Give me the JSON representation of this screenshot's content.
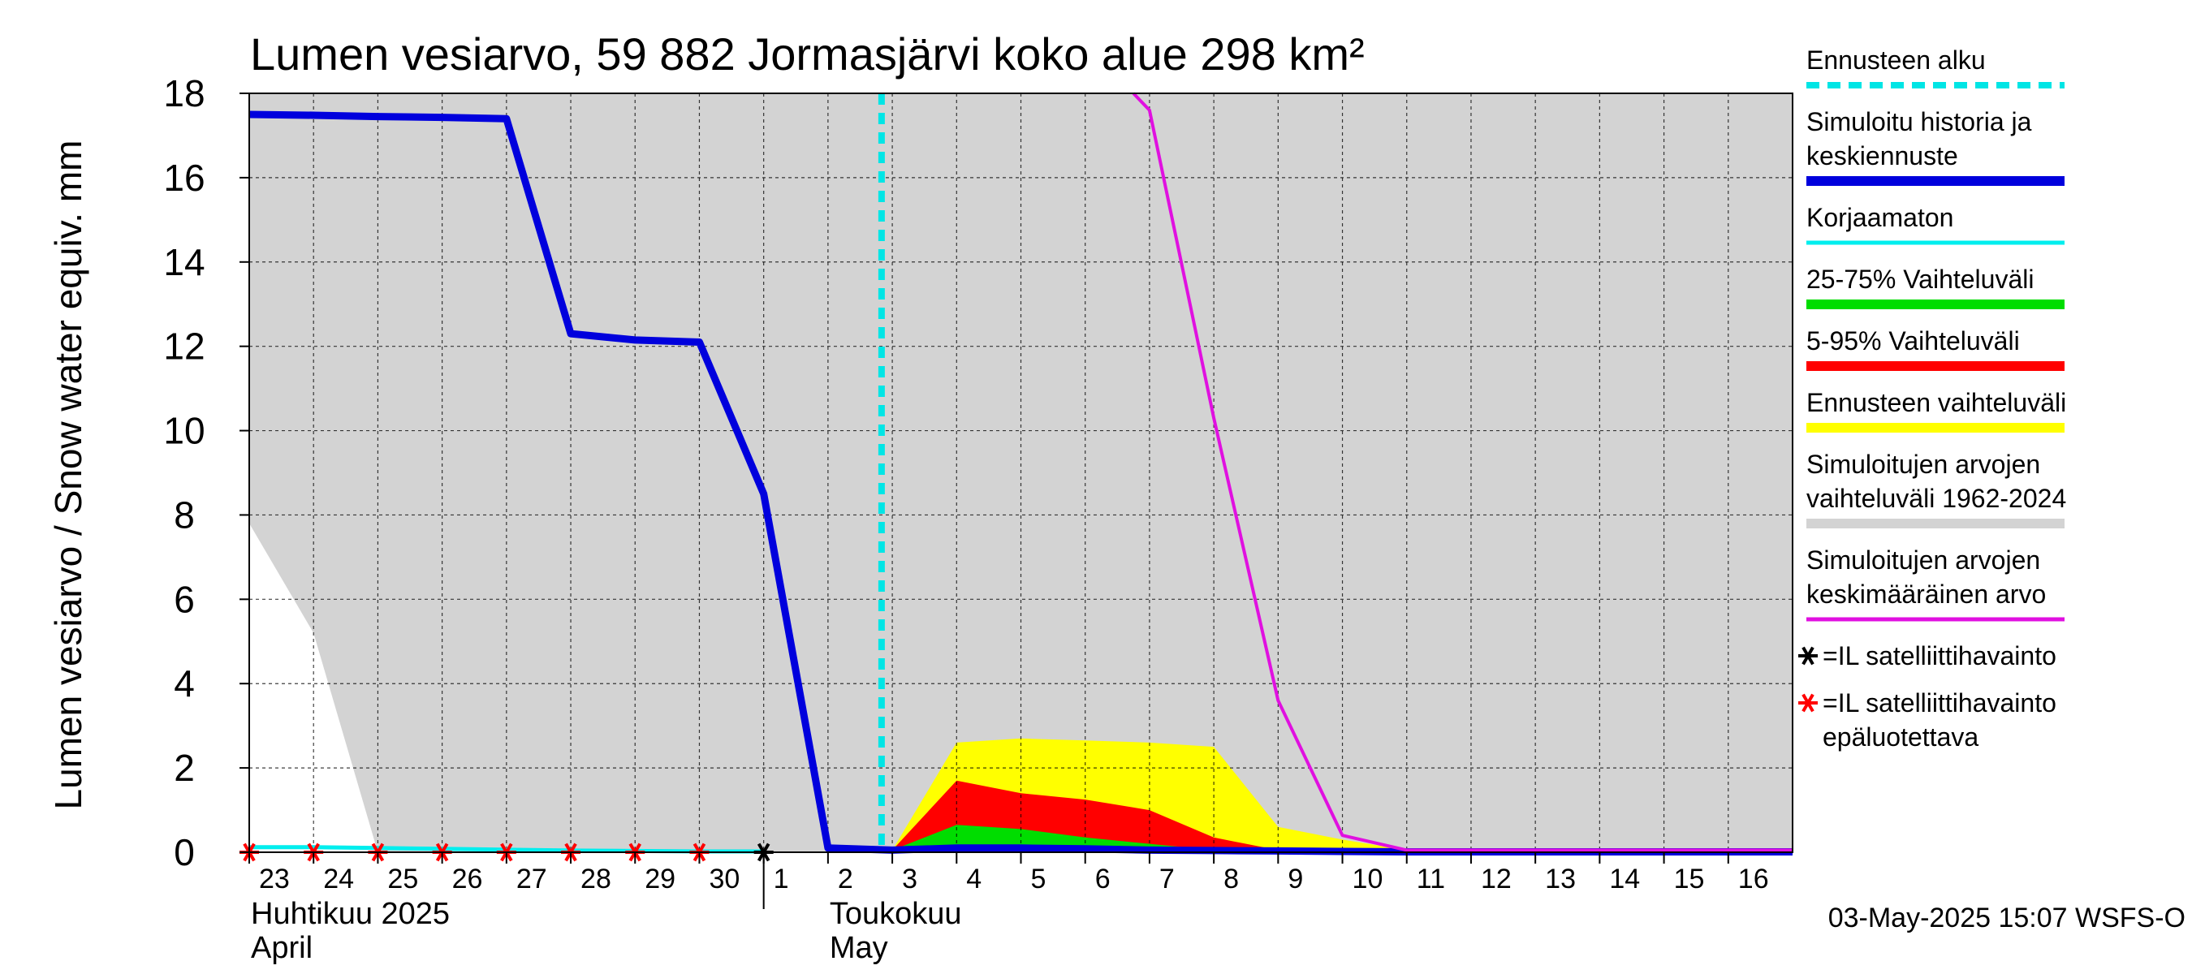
{
  "chart_data": {
    "type": "line",
    "title": "Lumen vesiarvo, 59 882 Jormasjärvi koko alue 298 km²",
    "ylabel": "Lumen vesiarvo / Snow water equiv.    mm",
    "ylim": [
      0,
      18
    ],
    "yticks": [
      0,
      2,
      4,
      6,
      8,
      10,
      12,
      14,
      16,
      18
    ],
    "x_domain": [
      "2025-04-23",
      "2025-05-17"
    ],
    "x_ticks": [
      {
        "date": "2025-04-23",
        "label": "23"
      },
      {
        "date": "2025-04-24",
        "label": "24"
      },
      {
        "date": "2025-04-25",
        "label": "25"
      },
      {
        "date": "2025-04-26",
        "label": "26"
      },
      {
        "date": "2025-04-27",
        "label": "27"
      },
      {
        "date": "2025-04-28",
        "label": "28"
      },
      {
        "date": "2025-04-29",
        "label": "29"
      },
      {
        "date": "2025-04-30",
        "label": "30"
      },
      {
        "date": "2025-05-01",
        "label": "1"
      },
      {
        "date": "2025-05-02",
        "label": "2"
      },
      {
        "date": "2025-05-03",
        "label": "3"
      },
      {
        "date": "2025-05-04",
        "label": "4"
      },
      {
        "date": "2025-05-05",
        "label": "5"
      },
      {
        "date": "2025-05-06",
        "label": "6"
      },
      {
        "date": "2025-05-07",
        "label": "7"
      },
      {
        "date": "2025-05-08",
        "label": "8"
      },
      {
        "date": "2025-05-09",
        "label": "9"
      },
      {
        "date": "2025-05-10",
        "label": "10"
      },
      {
        "date": "2025-05-11",
        "label": "11"
      },
      {
        "date": "2025-05-12",
        "label": "12"
      },
      {
        "date": "2025-05-13",
        "label": "13"
      },
      {
        "date": "2025-05-14",
        "label": "14"
      },
      {
        "date": "2025-05-15",
        "label": "15"
      },
      {
        "date": "2025-05-16",
        "label": "16"
      }
    ],
    "month_labels": [
      {
        "date": "2025-04-23",
        "line1": "Huhtikuu  2025",
        "line2": "April"
      },
      {
        "date": "2025-05-02",
        "line1": "Toukokuu",
        "line2": "May"
      }
    ],
    "month_boundary": "2025-05-01",
    "forecast_start": "2025-05-02T20:00",
    "grid": true,
    "legend_position": "right",
    "legend": [
      {
        "label": "Ennusteen alku",
        "color": "#00e5e5",
        "style": "dashed"
      },
      {
        "label": "Simuloitu historia ja keskiennuste",
        "color": "#0000dd",
        "style": "line"
      },
      {
        "label": "Korjaamaton",
        "color": "#00eeee",
        "style": "line"
      },
      {
        "label": "25-75% Vaihteluväli",
        "color": "#00dd00",
        "style": "line"
      },
      {
        "label": "5-95% Vaihteluväli",
        "color": "#ff0000",
        "style": "line"
      },
      {
        "label": "Ennusteen vaihteluväli",
        "color": "#ffff00",
        "style": "line"
      },
      {
        "label": "Simuloitujen arvojen vaihteluväli 1962-2024",
        "color": "#d3d3d3",
        "style": "line"
      },
      {
        "label": "Simuloitujen arvojen keskimääräinen arvo",
        "color": "#e010e0",
        "style": "line"
      },
      {
        "label": "=IL satelliittihavainto",
        "color": "#000000",
        "style": "star"
      },
      {
        "label": "=IL satelliittihavainto epäluotettava",
        "color": "#ff0000",
        "style": "star"
      }
    ],
    "historical_range": {
      "color": "#d3d3d3",
      "upper": {
        "x": [
          "2025-04-23",
          "2025-05-17"
        ],
        "y": [
          18,
          18
        ]
      },
      "lower": {
        "x": [
          "2025-04-23",
          "2025-04-24",
          "2025-04-25",
          "2025-05-17"
        ],
        "y": [
          7.8,
          5.2,
          0,
          0
        ]
      }
    },
    "forecast_range": {
      "color": "#ffff00",
      "x": [
        "2025-05-03",
        "2025-05-04",
        "2025-05-05",
        "2025-05-06",
        "2025-05-07",
        "2025-05-08",
        "2025-05-09",
        "2025-05-10",
        "2025-05-11"
      ],
      "upper": [
        0.05,
        2.6,
        2.7,
        2.65,
        2.6,
        2.5,
        0.6,
        0.3,
        0.05
      ],
      "lower": [
        0,
        0,
        0,
        0,
        0,
        0,
        0,
        0,
        0
      ]
    },
    "range_5_95": {
      "color": "#ff0000",
      "x": [
        "2025-05-03",
        "2025-05-04",
        "2025-05-05",
        "2025-05-06",
        "2025-05-07",
        "2025-05-08",
        "2025-05-09",
        "2025-05-10",
        "2025-05-11"
      ],
      "upper": [
        0.05,
        1.7,
        1.4,
        1.25,
        1.0,
        0.35,
        0.05,
        0.02,
        0
      ],
      "lower": [
        0,
        0,
        0,
        0,
        0,
        0,
        0,
        0,
        0
      ]
    },
    "range_25_75": {
      "color": "#00dd00",
      "x": [
        "2025-05-03",
        "2025-05-04",
        "2025-05-05",
        "2025-05-06",
        "2025-05-07",
        "2025-05-08",
        "2025-05-09"
      ],
      "upper": [
        0.05,
        0.65,
        0.55,
        0.35,
        0.2,
        0.05,
        0
      ],
      "lower": [
        0,
        0,
        0,
        0,
        0,
        0,
        0
      ]
    },
    "series": [
      {
        "name": "Simuloitu historia ja keskiennuste",
        "color": "#0000dd",
        "x": [
          "2025-04-23",
          "2025-04-24",
          "2025-04-25",
          "2025-04-26",
          "2025-04-27",
          "2025-04-28",
          "2025-04-29",
          "2025-04-30",
          "2025-05-01",
          "2025-05-02",
          "2025-05-03",
          "2025-05-04",
          "2025-05-05",
          "2025-05-06",
          "2025-05-07",
          "2025-05-08",
          "2025-05-09",
          "2025-05-10",
          "2025-05-11",
          "2025-05-17"
        ],
        "y": [
          17.5,
          17.48,
          17.45,
          17.43,
          17.4,
          12.3,
          12.15,
          12.1,
          8.5,
          0.1,
          0.05,
          0.1,
          0.1,
          0.08,
          0.05,
          0.04,
          0.03,
          0.02,
          0.01,
          0.01
        ]
      },
      {
        "name": "Korjaamaton",
        "color": "#00eeee",
        "x": [
          "2025-04-23",
          "2025-04-24",
          "2025-04-25",
          "2025-04-26",
          "2025-04-27",
          "2025-04-28",
          "2025-04-29",
          "2025-04-30",
          "2025-05-01"
        ],
        "y": [
          0.12,
          0.12,
          0.1,
          0.08,
          0.06,
          0.04,
          0.03,
          0.02,
          0.02
        ]
      },
      {
        "name": "Simuloitujen arvojen keskimääräinen arvo",
        "color": "#e010e0",
        "x": [
          "2025-05-06T18:00",
          "2025-05-07",
          "2025-05-08",
          "2025-05-09",
          "2025-05-10",
          "2025-05-11",
          "2025-05-17"
        ],
        "y": [
          18,
          17.6,
          10.3,
          3.6,
          0.4,
          0.05,
          0.05
        ]
      }
    ],
    "observations_unreliable": {
      "color": "#ff0000",
      "x": [
        "2025-04-23",
        "2025-04-24",
        "2025-04-25",
        "2025-04-26",
        "2025-04-27",
        "2025-04-28",
        "2025-04-29",
        "2025-04-30"
      ],
      "y": [
        0,
        0,
        0,
        0,
        0,
        0,
        0,
        0
      ]
    },
    "observations": {
      "color": "#000000",
      "x": [
        "2025-05-01"
      ],
      "y": [
        0
      ]
    }
  },
  "footer": {
    "timestamp": "03-May-2025 15:07 WSFS-O"
  }
}
